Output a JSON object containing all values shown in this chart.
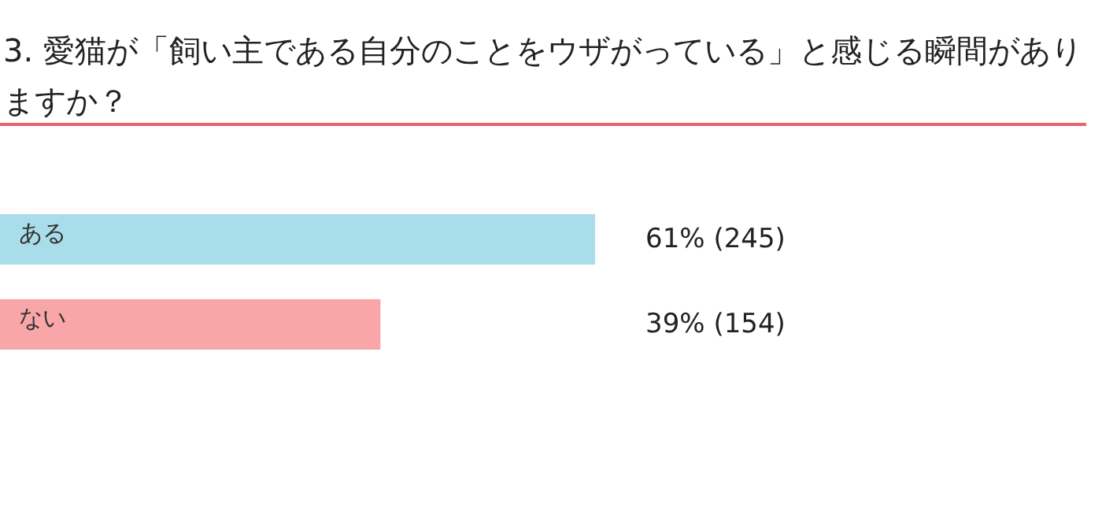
{
  "chart_data": {
    "type": "bar",
    "orientation": "horizontal",
    "title": "3. 愛猫が「飼い主である自分のことをウザがっている」と感じる瞬間がありますか？",
    "categories": [
      "ある",
      "ない"
    ],
    "values": [
      61,
      39
    ],
    "colors": [
      "#a8dde9",
      "#f9a6a8"
    ],
    "value_labels": [
      "61% (245)",
      "39% (154)"
    ]
  }
}
